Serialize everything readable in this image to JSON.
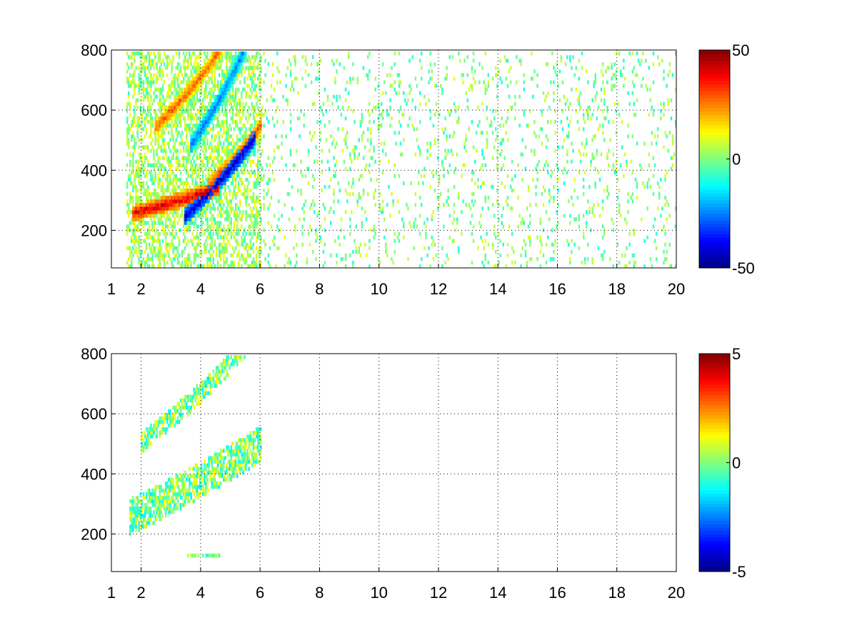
{
  "figure": {
    "background": "#ffffff"
  },
  "chart_data": [
    {
      "type": "heatmap",
      "title": "",
      "xlabel": "",
      "ylabel": "",
      "xlim": [
        1,
        20
      ],
      "ylim": [
        75,
        800
      ],
      "xticks": [
        1,
        2,
        4,
        6,
        8,
        10,
        12,
        14,
        16,
        18,
        20
      ],
      "yticks": [
        200,
        400,
        600,
        800
      ],
      "grid": true,
      "colormap": "jet",
      "colorbar": {
        "min": -50,
        "max": 50,
        "ticks": [
          50,
          0,
          -50
        ]
      },
      "features": [
        {
          "name": "lower-positive-band",
          "x_start": 1.7,
          "x_end": 4.6,
          "y_at_start": 250,
          "y_at_end": 330,
          "curve": 0.02,
          "thickness": 55,
          "value": 40
        },
        {
          "name": "lower-negative-band",
          "x_start": 3.4,
          "x_end": 5.8,
          "y_at_start": 235,
          "y_at_end": 470,
          "curve": 0.035,
          "thickness": 60,
          "value": -42
        },
        {
          "name": "mid-positive-band",
          "x_start": 4.2,
          "x_end": 6.0,
          "y_at_start": 340,
          "y_at_end": 520,
          "curve": 0.03,
          "thickness": 55,
          "value": 30
        },
        {
          "name": "upper-positive-band",
          "x_start": 2.4,
          "x_end": 4.8,
          "y_at_start": 530,
          "y_at_end": 780,
          "curve": 0.04,
          "thickness": 55,
          "value": 28
        },
        {
          "name": "upper-negative-band",
          "x_start": 3.6,
          "x_end": 5.7,
          "y_at_start": 470,
          "y_at_end": 790,
          "curve": 0.05,
          "thickness": 60,
          "value": -25
        },
        {
          "name": "scattered-noise",
          "x_start": 6,
          "x_end": 20,
          "y_min": 75,
          "y_max": 800,
          "value_range": [
            -10,
            10
          ],
          "density": 0.25
        }
      ]
    },
    {
      "type": "heatmap",
      "title": "",
      "xlabel": "",
      "ylabel": "",
      "xlim": [
        1,
        20
      ],
      "ylim": [
        75,
        800
      ],
      "xticks": [
        1,
        2,
        4,
        6,
        8,
        10,
        12,
        14,
        16,
        18,
        20
      ],
      "yticks": [
        200,
        400,
        600,
        800
      ],
      "grid": true,
      "colormap": "jet",
      "colorbar": {
        "min": -5,
        "max": 5,
        "ticks": [
          5,
          0,
          -5
        ]
      },
      "features": [
        {
          "name": "lower-cloud",
          "x_start": 1.6,
          "x_end": 6.0,
          "y_at_start": 250,
          "y_at_end": 470,
          "curve": 0.03,
          "thickness": 120,
          "value_range": [
            -1.5,
            1.5
          ]
        },
        {
          "name": "upper-cloud",
          "x_start": 2.0,
          "x_end": 5.7,
          "y_at_start": 500,
          "y_at_end": 790,
          "curve": 0.05,
          "thickness": 70,
          "value_range": [
            -1.5,
            1.5
          ]
        },
        {
          "name": "low-strip",
          "x_start": 3.5,
          "x_end": 4.6,
          "y": 120,
          "thickness": 12,
          "value_range": [
            -1,
            1
          ]
        }
      ]
    }
  ]
}
